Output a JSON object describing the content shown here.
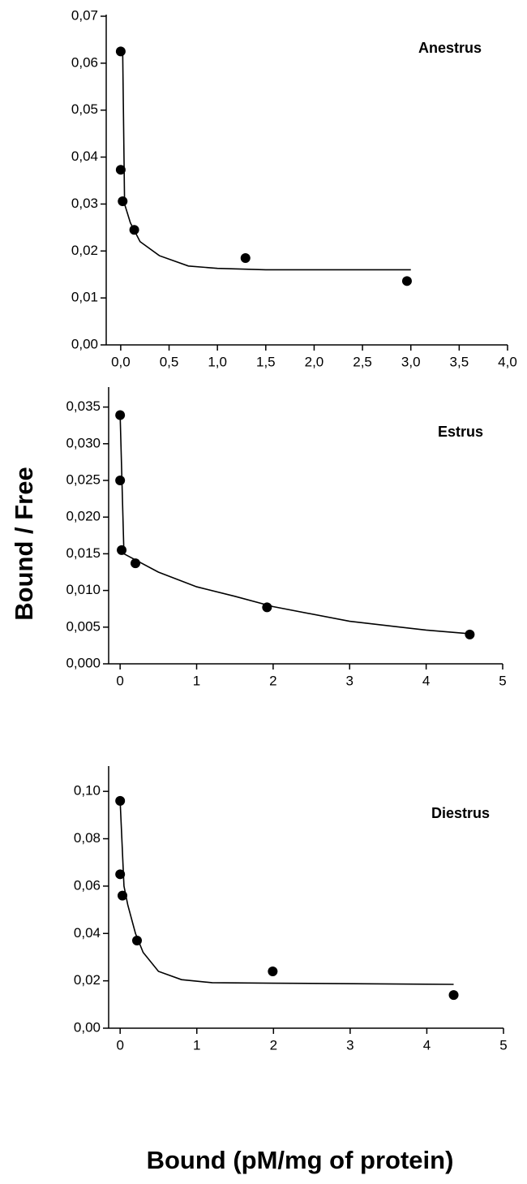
{
  "ylabel": "Bound / Free",
  "xlabel": "Bound (pM/mg of protein)",
  "chart_data": [
    {
      "type": "scatter",
      "title": "Anestrus",
      "xlim": [
        -0.15,
        4.0
      ],
      "ylim": [
        0,
        0.07
      ],
      "xticks": [
        {
          "value": 0,
          "label": "0,0"
        },
        {
          "value": 0.5,
          "label": "0,5"
        },
        {
          "value": 1,
          "label": "1,0"
        },
        {
          "value": 1.5,
          "label": "1,5"
        },
        {
          "value": 2,
          "label": "2,0"
        },
        {
          "value": 2.5,
          "label": "2,5"
        },
        {
          "value": 3,
          "label": "3,0"
        },
        {
          "value": 3.5,
          "label": "3,5"
        },
        {
          "value": 4,
          "label": "4,0"
        }
      ],
      "yticks": [
        {
          "value": 0,
          "label": "0,00"
        },
        {
          "value": 0.01,
          "label": "0,01"
        },
        {
          "value": 0.02,
          "label": "0,02"
        },
        {
          "value": 0.03,
          "label": "0,03"
        },
        {
          "value": 0.04,
          "label": "0,04"
        },
        {
          "value": 0.05,
          "label": "0,05"
        },
        {
          "value": 0.06,
          "label": "0,06"
        },
        {
          "value": 0.07,
          "label": "0,07"
        }
      ],
      "series": [
        {
          "kind": "scatter",
          "color": "#000000",
          "x": [
            0.0,
            0.0,
            0.02,
            0.14,
            1.29,
            2.96
          ],
          "values": [
            0.0625,
            0.0373,
            0.0306,
            0.0245,
            0.0185,
            0.0136
          ]
        },
        {
          "kind": "line",
          "color": "#000000",
          "x": [
            0.02,
            0.04,
            0.1,
            0.2,
            0.4,
            0.7,
            1.0,
            1.5,
            3.0
          ],
          "values": [
            0.063,
            0.03,
            0.026,
            0.022,
            0.019,
            0.0168,
            0.0163,
            0.016,
            0.016
          ]
        }
      ]
    },
    {
      "type": "scatter",
      "title": "Estrus",
      "xlim": [
        -0.15,
        5
      ],
      "ylim": [
        0,
        0.0375
      ],
      "xticks": [
        0,
        1,
        2,
        3,
        4,
        5
      ],
      "yticks": [
        {
          "value": 0,
          "label": "0,000"
        },
        {
          "value": 0.005,
          "label": "0,005"
        },
        {
          "value": 0.01,
          "label": "0,010"
        },
        {
          "value": 0.015,
          "label": "0,015"
        },
        {
          "value": 0.02,
          "label": "0,020"
        },
        {
          "value": 0.025,
          "label": "0,025"
        },
        {
          "value": 0.03,
          "label": "0,030"
        },
        {
          "value": 0.035,
          "label": "0,035"
        }
      ],
      "series": [
        {
          "kind": "scatter",
          "color": "#000000",
          "x": [
            0.0,
            0.0,
            0.02,
            0.2,
            1.92,
            4.57
          ],
          "values": [
            0.0339,
            0.025,
            0.0155,
            0.0137,
            0.0077,
            0.004
          ]
        },
        {
          "kind": "line",
          "color": "#000000",
          "x": [
            0.0,
            0.05,
            0.5,
            1,
            1.5,
            2,
            3,
            4,
            4.57
          ],
          "values": [
            0.034,
            0.015,
            0.0125,
            0.0105,
            0.0092,
            0.0078,
            0.0058,
            0.0046,
            0.0041
          ]
        }
      ]
    },
    {
      "type": "scatter",
      "title": "Diestrus",
      "xlim": [
        -0.15,
        5
      ],
      "ylim": [
        0,
        0.11
      ],
      "xticks": [
        0,
        1,
        2,
        3,
        4,
        5
      ],
      "yticks": [
        {
          "value": 0,
          "label": "0,00"
        },
        {
          "value": 0.02,
          "label": "0,02"
        },
        {
          "value": 0.04,
          "label": "0,04"
        },
        {
          "value": 0.06,
          "label": "0,06"
        },
        {
          "value": 0.08,
          "label": "0,08"
        },
        {
          "value": 0.1,
          "label": "0,10"
        }
      ],
      "series": [
        {
          "kind": "scatter",
          "color": "#000000",
          "x": [
            0.0,
            0.0,
            0.03,
            0.22,
            1.99,
            4.35
          ],
          "values": [
            0.096,
            0.065,
            0.056,
            0.037,
            0.024,
            0.014
          ]
        },
        {
          "kind": "line",
          "color": "#000000",
          "x": [
            0.0,
            0.05,
            0.1,
            0.2,
            0.3,
            0.5,
            0.8,
            1.2,
            2,
            4.35
          ],
          "values": [
            0.096,
            0.06,
            0.052,
            0.04,
            0.032,
            0.024,
            0.0205,
            0.0192,
            0.019,
            0.0185
          ]
        }
      ]
    }
  ]
}
